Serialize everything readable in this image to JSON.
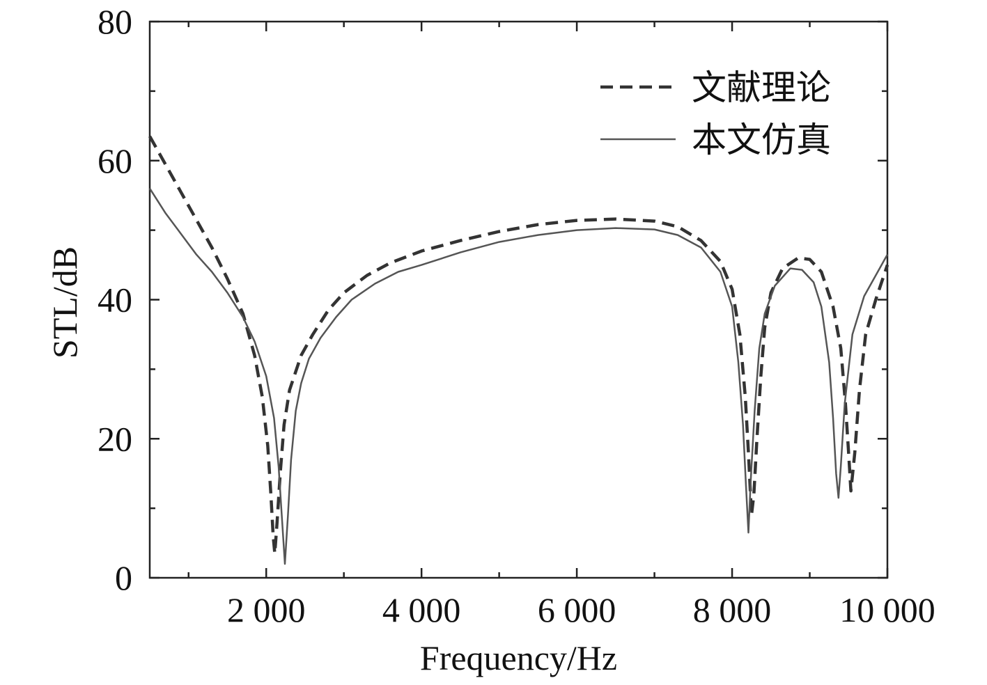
{
  "chart_data": {
    "type": "line",
    "xlabel": "Frequency/Hz",
    "ylabel": "STL/dB",
    "xlim": [
      500,
      10000
    ],
    "ylim": [
      0,
      80
    ],
    "x_ticks": [
      2000,
      4000,
      6000,
      8000,
      10000
    ],
    "x_tick_labels": [
      "2 000",
      "4 000",
      "6 000",
      "8 000",
      "10 000"
    ],
    "y_ticks": [
      0,
      20,
      40,
      60,
      80
    ],
    "y_tick_labels": [
      "0",
      "20",
      "40",
      "60",
      "80"
    ],
    "grid": false,
    "legend_position": "top-right",
    "series": [
      {
        "name": "文献理论",
        "style": "dashed",
        "color": "#333333",
        "points": [
          [
            500,
            63.5
          ],
          [
            700,
            59.5
          ],
          [
            900,
            55.5
          ],
          [
            1100,
            51.5
          ],
          [
            1300,
            47.5
          ],
          [
            1500,
            43
          ],
          [
            1700,
            38
          ],
          [
            1850,
            32
          ],
          [
            1950,
            26
          ],
          [
            2020,
            19
          ],
          [
            2060,
            12
          ],
          [
            2090,
            6
          ],
          [
            2110,
            3.5
          ],
          [
            2140,
            8
          ],
          [
            2180,
            15
          ],
          [
            2230,
            22
          ],
          [
            2300,
            27
          ],
          [
            2450,
            32
          ],
          [
            2600,
            35
          ],
          [
            2800,
            38.5
          ],
          [
            3000,
            41
          ],
          [
            3300,
            43.5
          ],
          [
            3600,
            45.3
          ],
          [
            4000,
            47
          ],
          [
            4500,
            48.5
          ],
          [
            5000,
            49.8
          ],
          [
            5500,
            50.8
          ],
          [
            6000,
            51.4
          ],
          [
            6500,
            51.6
          ],
          [
            7000,
            51.3
          ],
          [
            7300,
            50.5
          ],
          [
            7600,
            48.5
          ],
          [
            7850,
            45.5
          ],
          [
            8000,
            41.5
          ],
          [
            8100,
            35
          ],
          [
            8170,
            26
          ],
          [
            8210,
            18
          ],
          [
            8250,
            9
          ],
          [
            8280,
            12
          ],
          [
            8320,
            20
          ],
          [
            8370,
            29
          ],
          [
            8420,
            36
          ],
          [
            8500,
            41
          ],
          [
            8650,
            44.5
          ],
          [
            8850,
            46
          ],
          [
            9000,
            45.8
          ],
          [
            9150,
            44
          ],
          [
            9300,
            39
          ],
          [
            9400,
            33
          ],
          [
            9460,
            25
          ],
          [
            9500,
            18
          ],
          [
            9530,
            12.5
          ],
          [
            9580,
            18
          ],
          [
            9640,
            27
          ],
          [
            9720,
            35
          ],
          [
            9850,
            40
          ],
          [
            10000,
            45
          ]
        ]
      },
      {
        "name": "本文仿真",
        "style": "solid",
        "color": "#555555",
        "points": [
          [
            500,
            56
          ],
          [
            700,
            52.5
          ],
          [
            900,
            49.5
          ],
          [
            1100,
            46.5
          ],
          [
            1300,
            44
          ],
          [
            1500,
            41
          ],
          [
            1700,
            37.5
          ],
          [
            1850,
            34
          ],
          [
            2000,
            29
          ],
          [
            2100,
            23
          ],
          [
            2160,
            16
          ],
          [
            2200,
            9
          ],
          [
            2240,
            2
          ],
          [
            2280,
            9
          ],
          [
            2320,
            17
          ],
          [
            2380,
            24
          ],
          [
            2450,
            28
          ],
          [
            2550,
            31.5
          ],
          [
            2700,
            34.5
          ],
          [
            2900,
            37.5
          ],
          [
            3100,
            40
          ],
          [
            3400,
            42.3
          ],
          [
            3700,
            44
          ],
          [
            4000,
            45
          ],
          [
            4500,
            46.8
          ],
          [
            5000,
            48.3
          ],
          [
            5500,
            49.3
          ],
          [
            6000,
            50
          ],
          [
            6500,
            50.3
          ],
          [
            7000,
            50.1
          ],
          [
            7300,
            49.3
          ],
          [
            7600,
            47.5
          ],
          [
            7850,
            44
          ],
          [
            8000,
            39
          ],
          [
            8080,
            31
          ],
          [
            8140,
            22
          ],
          [
            8180,
            13
          ],
          [
            8210,
            6.5
          ],
          [
            8240,
            14
          ],
          [
            8290,
            24
          ],
          [
            8350,
            33
          ],
          [
            8420,
            38
          ],
          [
            8550,
            42
          ],
          [
            8750,
            44.5
          ],
          [
            8900,
            44.3
          ],
          [
            9050,
            42.5
          ],
          [
            9150,
            39
          ],
          [
            9250,
            31
          ],
          [
            9300,
            23
          ],
          [
            9340,
            15
          ],
          [
            9370,
            11.5
          ],
          [
            9400,
            16
          ],
          [
            9450,
            25
          ],
          [
            9550,
            35
          ],
          [
            9700,
            40.5
          ],
          [
            10000,
            46.5
          ]
        ]
      }
    ]
  }
}
